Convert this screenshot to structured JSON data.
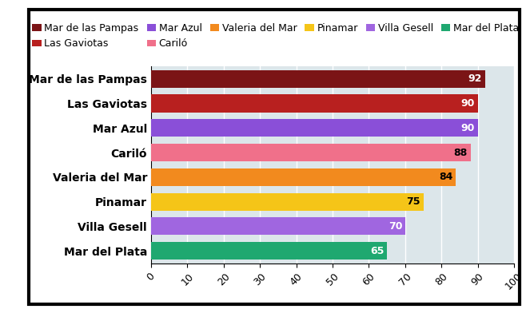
{
  "chart_data": {
    "type": "bar",
    "orientation": "horizontal",
    "categories": [
      "Mar de las Pampas",
      "Las Gaviotas",
      "Mar Azul",
      "Cariló",
      "Valeria del Mar",
      "Pinamar",
      "Villa Gesell",
      "Mar del Plata"
    ],
    "values": [
      92,
      90,
      90,
      88,
      84,
      75,
      70,
      65
    ],
    "colors": [
      "#7b1416",
      "#b8201f",
      "#8a4fd8",
      "#f0708a",
      "#f28a1e",
      "#f5c518",
      "#a066e0",
      "#1fa870"
    ],
    "xlim": [
      0,
      100
    ],
    "xticks": [
      0,
      10,
      20,
      30,
      40,
      50,
      60,
      70,
      80,
      90,
      100
    ],
    "grid": true,
    "data_labels": true,
    "legend": "upper center"
  }
}
